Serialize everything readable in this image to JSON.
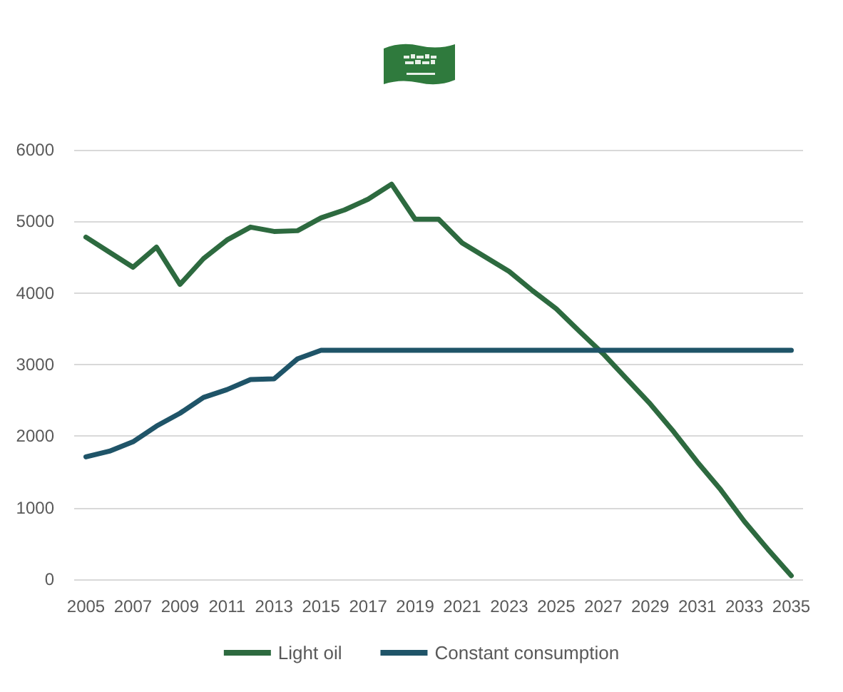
{
  "chart_data": {
    "type": "line",
    "categories": [
      "2005",
      null,
      "2007",
      null,
      "2009",
      null,
      "2011",
      null,
      "2013",
      null,
      "2015",
      null,
      "2017",
      null,
      "2019",
      null,
      "2021",
      null,
      "2023",
      null,
      "2025",
      null,
      "2027",
      null,
      "2029",
      null,
      "2031",
      null,
      "2033",
      null,
      "2035"
    ],
    "series": [
      {
        "name": "Light oil",
        "color": "#2d6a3f",
        "values": [
          4780,
          4570,
          4360,
          4640,
          4120,
          4480,
          4740,
          4920,
          4860,
          4870,
          5050,
          5160,
          5310,
          5520,
          5030,
          5030,
          4700,
          4500,
          4300,
          4030,
          3780,
          3460,
          3150,
          2800,
          2450,
          2060,
          1640,
          1250,
          810,
          420,
          50
        ]
      },
      {
        "name": "Constant consumption",
        "color": "#1f5468",
        "values": [
          1710,
          1790,
          1920,
          2140,
          2320,
          2540,
          2650,
          2790,
          2800,
          3080,
          3200,
          3200,
          3200,
          3200,
          3200,
          3200,
          3200,
          3200,
          3200,
          3200,
          3200,
          3200,
          3200,
          3200,
          3200,
          3200,
          3200,
          3200,
          3200,
          3200,
          3200
        ]
      }
    ],
    "ylim": [
      0,
      6000
    ],
    "yticks": [
      0,
      1000,
      2000,
      3000,
      4000,
      5000,
      6000
    ],
    "grid": "y",
    "legend": "bottom",
    "marker": "none",
    "line_style": "solid"
  }
}
